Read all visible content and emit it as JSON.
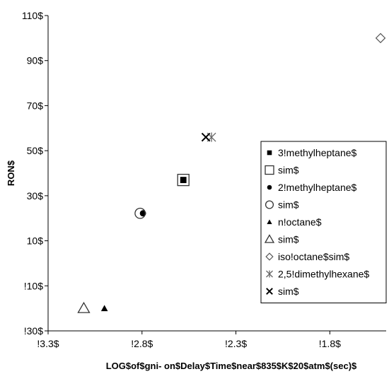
{
  "chart_data": {
    "type": "scatter",
    "title": "",
    "xlabel": "LOG$of$gni- on$Delay$Time$near$835$K$20$atm$(sec)$",
    "ylabel": "RON$",
    "xlim": [
      -3.3,
      -1.5
    ],
    "ylim": [
      -30,
      110
    ],
    "x_ticks": [
      -3.3,
      -2.8,
      -2.3,
      -1.8
    ],
    "x_tick_labels": [
      "!3.3$",
      "!2.8$",
      "!2.3$",
      "!1.8$"
    ],
    "y_ticks": [
      -30,
      -10,
      10,
      30,
      50,
      70,
      90,
      110
    ],
    "y_tick_labels": [
      "!30$",
      "!10$",
      "10$",
      "30$",
      "50$",
      "70$",
      "90$",
      "110$"
    ],
    "grid": false,
    "legend_position": "right",
    "series": [
      {
        "name": "3!methylheptane$",
        "marker": "filled-square",
        "points": [
          [
            -2.58,
            37.0
          ]
        ]
      },
      {
        "name": "sim$",
        "marker": "open-square",
        "points": [
          [
            -2.58,
            37.0
          ]
        ]
      },
      {
        "name": "2!methylheptane$",
        "marker": "filled-circle",
        "points": [
          [
            -2.795,
            22.2
          ]
        ]
      },
      {
        "name": "sim$",
        "marker": "open-circle",
        "points": [
          [
            -2.81,
            22.2
          ]
        ]
      },
      {
        "name": "n!octane$",
        "marker": "filled-triangle",
        "points": [
          [
            -3.0,
            -20.0
          ]
        ]
      },
      {
        "name": "sim$",
        "marker": "open-triangle",
        "points": [
          [
            -3.11,
            -20.0
          ]
        ]
      },
      {
        "name": "iso!octane$sim$",
        "marker": "open-diamond",
        "points": [
          [
            -1.53,
            100.0
          ]
        ]
      },
      {
        "name": "2,5!dimethylhexane$",
        "marker": "asterisk",
        "points": [
          [
            -2.43,
            56.0
          ]
        ]
      },
      {
        "name": "sim$",
        "marker": "x-cross",
        "points": [
          [
            -2.46,
            56.0
          ]
        ]
      }
    ]
  }
}
